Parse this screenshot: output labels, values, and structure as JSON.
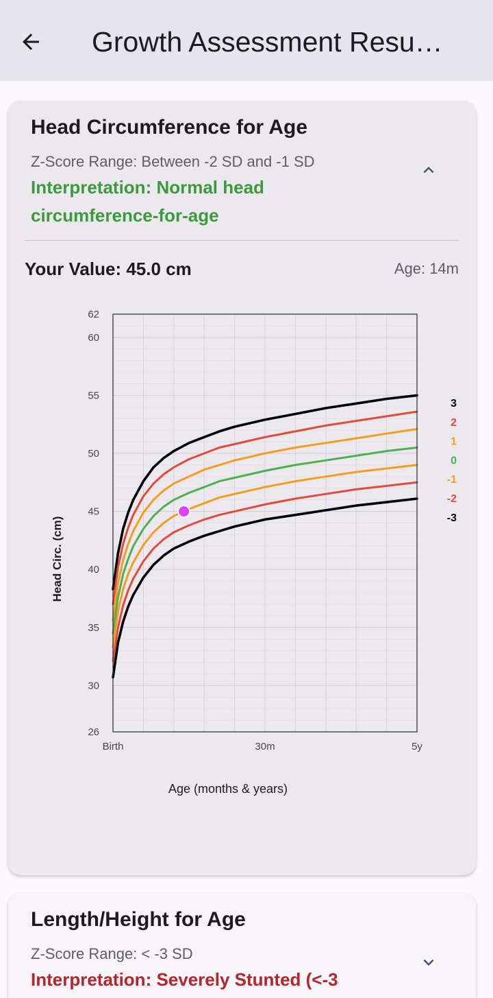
{
  "app_bar": {
    "title": "Growth Assessment Resu…",
    "back_icon": "arrow-left-icon"
  },
  "cards": [
    {
      "title": "Head Circumference for Age",
      "z_score_range": "Z-Score Range: Between -2 SD and -1 SD",
      "interpretation": "Interpretation: Normal head circumference-for-age",
      "interpretation_color": "#3c9a3d",
      "expanded": true,
      "toggle_icon": "chevron-up-icon",
      "your_value": "Your Value: 45.0 cm",
      "age": "Age: 14m"
    },
    {
      "title": "Length/Height for Age",
      "z_score_range": "Z-Score Range: < -3 SD",
      "interpretation": "Interpretation: Severely Stunted (<-3",
      "interpretation_color": "#b3262b",
      "expanded": false,
      "toggle_icon": "chevron-down-icon"
    }
  ],
  "chart_data": {
    "type": "line",
    "xlabel": "Age (months & years)",
    "ylabel": "Head Circ. (cm)",
    "xlim": [
      0,
      60
    ],
    "ylim": [
      26,
      62
    ],
    "x_ticks": [
      {
        "value": 0,
        "label": "Birth"
      },
      {
        "value": 30,
        "label": "30m"
      },
      {
        "value": 60,
        "label": "5y"
      }
    ],
    "y_ticks": [
      26,
      30,
      35,
      40,
      45,
      50,
      55,
      60,
      62
    ],
    "grid": true,
    "legend": "right-of-plot",
    "x": [
      0,
      1,
      2,
      3,
      4,
      6,
      8,
      10,
      12,
      15,
      18,
      21,
      24,
      30,
      36,
      42,
      48,
      54,
      60
    ],
    "series": [
      {
        "name": "3",
        "color": "#000000",
        "values": [
          38.3,
          41.4,
          43.5,
          44.9,
          46.0,
          47.6,
          48.8,
          49.6,
          50.2,
          50.9,
          51.4,
          51.9,
          52.3,
          52.9,
          53.4,
          53.9,
          54.3,
          54.7,
          55.0
        ]
      },
      {
        "name": "2",
        "color": "#e24a3b",
        "values": [
          37.0,
          40.2,
          42.2,
          43.6,
          44.7,
          46.3,
          47.4,
          48.2,
          48.8,
          49.5,
          50.0,
          50.5,
          50.8,
          51.4,
          51.9,
          52.4,
          52.8,
          53.2,
          53.6
        ]
      },
      {
        "name": "1",
        "color": "#f39c1f",
        "values": [
          35.6,
          38.8,
          40.8,
          42.2,
          43.3,
          44.9,
          46.0,
          46.8,
          47.4,
          48.0,
          48.6,
          49.0,
          49.4,
          50.0,
          50.5,
          50.9,
          51.3,
          51.7,
          52.1
        ]
      },
      {
        "name": "0",
        "color": "#4caf50",
        "values": [
          34.5,
          37.6,
          39.6,
          40.9,
          42.0,
          43.5,
          44.6,
          45.4,
          46.0,
          46.6,
          47.1,
          47.6,
          47.9,
          48.5,
          49.0,
          49.4,
          49.8,
          50.2,
          50.5
        ]
      },
      {
        "name": "-1",
        "color": "#f39c1f",
        "values": [
          33.3,
          36.4,
          38.3,
          39.6,
          40.6,
          42.1,
          43.2,
          44.0,
          44.6,
          45.2,
          45.7,
          46.2,
          46.5,
          47.1,
          47.6,
          48.0,
          48.4,
          48.7,
          49.0
        ]
      },
      {
        "name": "-2",
        "color": "#e24a3b",
        "values": [
          32.1,
          35.0,
          36.9,
          38.2,
          39.2,
          40.7,
          41.8,
          42.6,
          43.2,
          43.8,
          44.3,
          44.7,
          45.0,
          45.6,
          46.1,
          46.5,
          46.9,
          47.2,
          47.5
        ]
      },
      {
        "name": "-3",
        "color": "#000000",
        "values": [
          30.7,
          33.7,
          35.5,
          36.8,
          37.8,
          39.3,
          40.4,
          41.2,
          41.8,
          42.4,
          42.9,
          43.3,
          43.7,
          44.3,
          44.7,
          45.1,
          45.5,
          45.8,
          46.1
        ]
      }
    ],
    "marker": {
      "x": 14,
      "y": 45.0,
      "color": "#e040fb"
    }
  }
}
